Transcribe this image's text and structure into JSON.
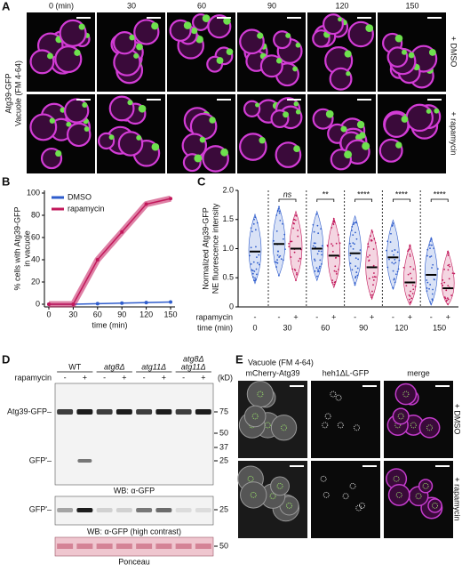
{
  "panels": {
    "A": {
      "letter": "A",
      "times": [
        "0 (min)",
        "30",
        "60",
        "90",
        "120",
        "150"
      ],
      "rows": [
        "+ DMSO",
        "+ rapamycin"
      ],
      "side_labels": [
        "Atg39-GFP",
        "Vacuole (FM 4-64)"
      ]
    },
    "D": {
      "letter": "D",
      "lanes": [
        [
          "WT"
        ],
        [
          "atg8Δ"
        ],
        [
          "atg11Δ"
        ],
        [
          "atg8Δ",
          "atg11Δ"
        ]
      ],
      "treatment": "rapamycin",
      "signs": [
        "-",
        "+"
      ],
      "unit": "(kD)",
      "blot1": {
        "bands": [
          "Atg39-GFP–",
          "GFP'–"
        ],
        "markers": [
          "75",
          "50",
          "37",
          "25"
        ],
        "caption": "WB: α-GFP"
      },
      "blot2": {
        "bands": [
          "GFP'–"
        ],
        "markers": [
          "25"
        ],
        "caption": "WB: α-GFP (high contrast)"
      },
      "blot3": {
        "markers": [
          "50"
        ],
        "caption": "Ponceau"
      }
    },
    "E": {
      "letter": "E",
      "title": "Vacuole (FM 4-64)",
      "columns": [
        "mCherry-Atg39",
        "heh1ΔL-GFP",
        "merge"
      ],
      "rows": [
        "+ DMSO",
        "+ rapamycin"
      ]
    }
  },
  "chart_data": [
    {
      "type": "line",
      "letter": "B",
      "ylabel": [
        "% cells with Atg39-GFP",
        "in vacuole"
      ],
      "xlabel": "time (min)",
      "x": [
        0,
        30,
        60,
        90,
        120,
        150
      ],
      "xlim": [
        0,
        150
      ],
      "xticks": [
        0,
        30,
        60,
        90,
        120,
        150
      ],
      "ylim": [
        0,
        100
      ],
      "yticks": [
        0,
        20,
        40,
        60,
        80,
        100
      ],
      "legend": "upper left",
      "series": [
        {
          "name": "DMSO",
          "color": "#2e5ccc",
          "values": [
            0,
            0,
            0.5,
            1,
            1.5,
            2
          ]
        },
        {
          "name": "rapamycin",
          "color": "#c2185b",
          "values": [
            0,
            0,
            40,
            65,
            90,
            95
          ]
        }
      ]
    },
    {
      "type": "violin",
      "letter": "C",
      "ylabel": [
        "Normalized Atg39-GFP",
        "NE fluorescence intensity"
      ],
      "ylim": [
        0,
        2
      ],
      "yticks": [
        0,
        0.5,
        {
          "value": 1,
          "label": "1.0"
        },
        1.5,
        {
          "value": 2,
          "label": "2.0"
        }
      ],
      "categories": [
        "0",
        "30",
        "60",
        "90",
        "120",
        "150"
      ],
      "row_labels": [
        "rapamycin",
        "time (min)"
      ],
      "significance": [
        "ns",
        "**",
        "****",
        "****",
        "****"
      ],
      "series": [
        {
          "name": "-",
          "color": "#2e5ccc",
          "values": [
            0.95,
            1.08,
            1.0,
            0.92,
            0.85,
            0.55
          ]
        },
        {
          "name": "+",
          "color": "#c2185b",
          "values": [
            null,
            1.0,
            0.88,
            0.68,
            0.42,
            0.32
          ]
        }
      ]
    }
  ]
}
